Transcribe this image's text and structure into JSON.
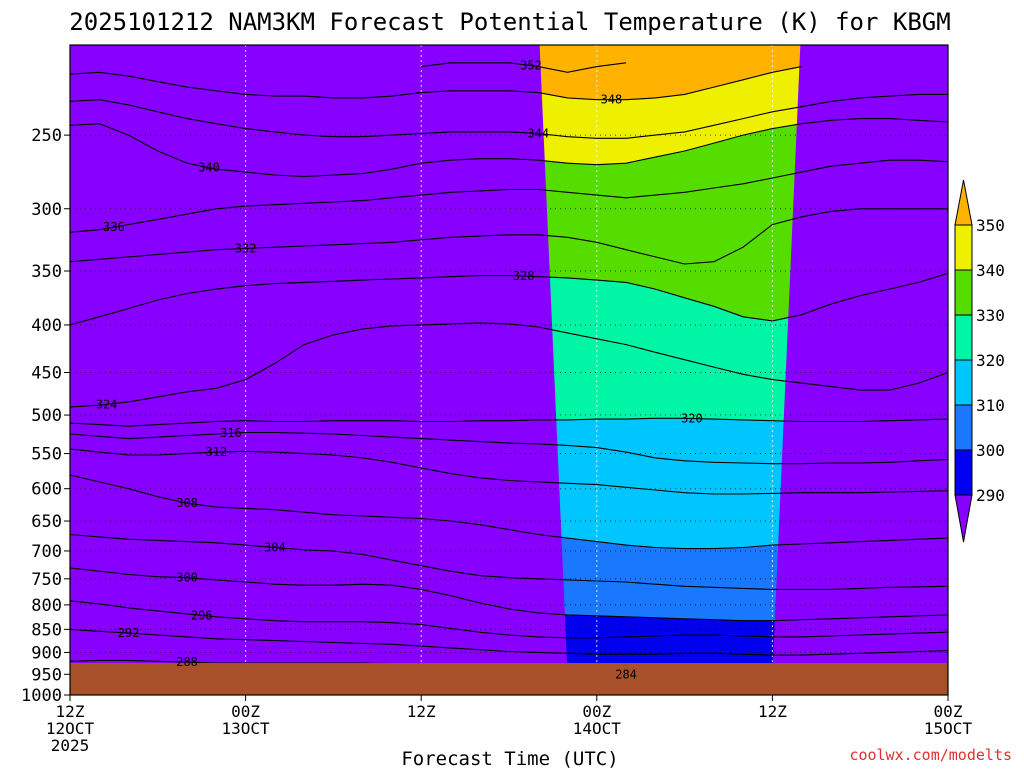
{
  "chart_data": {
    "type": "heatmap",
    "title": "2025101212 NAM3KM Forecast Potential Temperature (K) for KBGM",
    "xlabel": "Forecast Time (UTC)",
    "ylabel": "",
    "credit": "coolwx.com/modelts",
    "x_range_hours": [
      0,
      60
    ],
    "y_range_hpa": [
      200,
      1000
    ],
    "y_ticks": [
      250,
      300,
      350,
      400,
      450,
      500,
      550,
      600,
      650,
      700,
      750,
      800,
      850,
      900,
      950,
      1000
    ],
    "x_ticks": [
      {
        "hour": 0,
        "line1": "12Z",
        "line2": "12OCT",
        "line3": "2025"
      },
      {
        "hour": 12,
        "line1": "00Z",
        "line2": "13OCT",
        "line3": ""
      },
      {
        "hour": 24,
        "line1": "12Z",
        "line2": "",
        "line3": ""
      },
      {
        "hour": 36,
        "line1": "00Z",
        "line2": "14OCT",
        "line3": ""
      },
      {
        "hour": 48,
        "line1": "12Z",
        "line2": "",
        "line3": ""
      },
      {
        "hour": 60,
        "line1": "00Z",
        "line2": "15OCT",
        "line3": ""
      }
    ],
    "colorbar": {
      "levels": [
        290,
        300,
        310,
        320,
        330,
        340,
        350
      ],
      "colors": [
        "#8800ff",
        "#0000ee",
        "#1a78ff",
        "#00c6ff",
        "#00f5a5",
        "#55dd00",
        "#eef000",
        "#ffb300"
      ]
    },
    "ground_color": "#a8502a",
    "contours": [
      {
        "value": 352,
        "label": "352",
        "label_hour": 31.5,
        "hpa": [
          null,
          null,
          null,
          null,
          null,
          null,
          null,
          null,
          null,
          null,
          null,
          null,
          211,
          209,
          209,
          209,
          211,
          214,
          211,
          209,
          null,
          null,
          null,
          null,
          null,
          null,
          null,
          null,
          null,
          null,
          null
        ]
      },
      {
        "value": 348,
        "label": "348",
        "label_hour": 37,
        "hpa": [
          215,
          214,
          216,
          219,
          222,
          224,
          226,
          227,
          227,
          228,
          228,
          227,
          225,
          224,
          224,
          224,
          225,
          228,
          229,
          229,
          228,
          226,
          222,
          218,
          214,
          211,
          null,
          null,
          null,
          null,
          null
        ]
      },
      {
        "value": 344,
        "label": "344",
        "label_hour": 32,
        "hpa": [
          230,
          229,
          232,
          236,
          240,
          243,
          246,
          248,
          250,
          251,
          251,
          250,
          249,
          248,
          248,
          248,
          249,
          251,
          252,
          252,
          250,
          248,
          244,
          240,
          236,
          233,
          230,
          228,
          227,
          226,
          226
        ]
      },
      {
        "value": 340,
        "label": "340",
        "label_hour": 9.5,
        "hpa": [
          244,
          243,
          250,
          260,
          268,
          272,
          274,
          276,
          277,
          276,
          275,
          272,
          268,
          266,
          265,
          265,
          266,
          268,
          269,
          268,
          264,
          260,
          255,
          250,
          246,
          243,
          241,
          240,
          240,
          241,
          242
        ]
      },
      {
        "value": 336,
        "label": "336",
        "label_hour": 3,
        "hpa": [
          318,
          316,
          312,
          308,
          304,
          300,
          298,
          297,
          296,
          295,
          294,
          292,
          290,
          288,
          287,
          286,
          286,
          288,
          290,
          292,
          290,
          288,
          285,
          282,
          278,
          274,
          270,
          268,
          266,
          266,
          267
        ]
      },
      {
        "value": 332,
        "label": "332",
        "label_hour": 12,
        "hpa": [
          342,
          340,
          338,
          336,
          334,
          332,
          331,
          330,
          329,
          328,
          327,
          326,
          324,
          322,
          321,
          320,
          320,
          322,
          326,
          332,
          338,
          344,
          342,
          330,
          312,
          306,
          302,
          300,
          300,
          300,
          300
        ]
      },
      {
        "value": 328,
        "label": "328",
        "label_hour": 31,
        "hpa": [
          400,
          392,
          384,
          376,
          370,
          366,
          363,
          361,
          360,
          359,
          358,
          357,
          356,
          355,
          354,
          354,
          355,
          356,
          358,
          360,
          366,
          374,
          382,
          392,
          396,
          390,
          380,
          372,
          366,
          360,
          352
        ]
      },
      {
        "value": 324,
        "label": "324",
        "label_hour": 2.5,
        "hpa": [
          490,
          488,
          484,
          478,
          472,
          468,
          458,
          440,
          420,
          410,
          404,
          401,
          400,
          399,
          398,
          399,
          402,
          408,
          414,
          420,
          428,
          436,
          444,
          452,
          458,
          462,
          466,
          470,
          470,
          462,
          450
        ]
      },
      {
        "value": 320,
        "label": "320",
        "label_hour": 42.5,
        "hpa": [
          510,
          512,
          514,
          512,
          510,
          508,
          507,
          508,
          508,
          507,
          507,
          507,
          508,
          508,
          507,
          507,
          506,
          506,
          505,
          505,
          504,
          504,
          505,
          506,
          507,
          508,
          508,
          508,
          507,
          506,
          505
        ]
      },
      {
        "value": 316,
        "label": "316",
        "label_hour": 11,
        "hpa": [
          524,
          527,
          530,
          528,
          526,
          524,
          522,
          522,
          523,
          524,
          526,
          528,
          530,
          532,
          534,
          536,
          537,
          539,
          542,
          548,
          556,
          560,
          562,
          563,
          564,
          564,
          563,
          563,
          562,
          560,
          558
        ]
      },
      {
        "value": 312,
        "label": "312",
        "label_hour": 10,
        "hpa": [
          544,
          548,
          552,
          552,
          550,
          548,
          547,
          548,
          550,
          552,
          556,
          562,
          570,
          578,
          584,
          588,
          590,
          592,
          594,
          598,
          602,
          606,
          608,
          608,
          607,
          606,
          606,
          606,
          605,
          604,
          603
        ]
      },
      {
        "value": 308,
        "label": "308",
        "label_hour": 8,
        "hpa": [
          580,
          590,
          600,
          612,
          622,
          628,
          630,
          632,
          636,
          640,
          642,
          644,
          646,
          650,
          656,
          664,
          672,
          678,
          684,
          690,
          694,
          696,
          696,
          694,
          690,
          688,
          686,
          684,
          682,
          680,
          678
        ]
      },
      {
        "value": 304,
        "label": "304",
        "label_hour": 14,
        "hpa": [
          672,
          676,
          680,
          682,
          684,
          686,
          690,
          694,
          698,
          700,
          706,
          716,
          726,
          736,
          744,
          748,
          750,
          752,
          754,
          756,
          760,
          764,
          766,
          768,
          770,
          770,
          770,
          768,
          766,
          765,
          764
        ]
      },
      {
        "value": 300,
        "label": "300",
        "label_hour": 8,
        "hpa": [
          730,
          736,
          742,
          746,
          748,
          752,
          756,
          760,
          762,
          762,
          760,
          762,
          770,
          782,
          796,
          808,
          816,
          820,
          822,
          824,
          826,
          828,
          830,
          832,
          832,
          830,
          828,
          826,
          824,
          822,
          820
        ]
      },
      {
        "value": 296,
        "label": "296",
        "label_hour": 9,
        "hpa": [
          792,
          798,
          806,
          812,
          818,
          824,
          828,
          832,
          834,
          834,
          834,
          836,
          840,
          848,
          856,
          862,
          866,
          868,
          868,
          866,
          864,
          862,
          862,
          864,
          866,
          866,
          864,
          862,
          860,
          858,
          856
        ]
      },
      {
        "value": 292,
        "label": "292",
        "label_hour": 4,
        "hpa": [
          850,
          854,
          858,
          862,
          866,
          870,
          872,
          874,
          876,
          878,
          880,
          882,
          886,
          890,
          894,
          898,
          900,
          902,
          904,
          904,
          904,
          902,
          902,
          904,
          906,
          906,
          904,
          902,
          900,
          898,
          896
        ]
      },
      {
        "value": 288,
        "label": "288",
        "label_hour": 8,
        "hpa": [
          920,
          918,
          918,
          920,
          922,
          924,
          924,
          924,
          924,
          924,
          924,
          925,
          926,
          928,
          930,
          932,
          934,
          936,
          938,
          940,
          942,
          942,
          942,
          942,
          942,
          940,
          938,
          936,
          934,
          932,
          930
        ]
      },
      {
        "value": 284,
        "label": "284",
        "label_hour": 38,
        "hpa": [
          null,
          null,
          null,
          null,
          null,
          null,
          null,
          null,
          null,
          null,
          null,
          null,
          null,
          null,
          null,
          null,
          null,
          948,
          950,
          950,
          948,
          946,
          946,
          948,
          950,
          null,
          null,
          null,
          null,
          null,
          null
        ]
      }
    ]
  }
}
